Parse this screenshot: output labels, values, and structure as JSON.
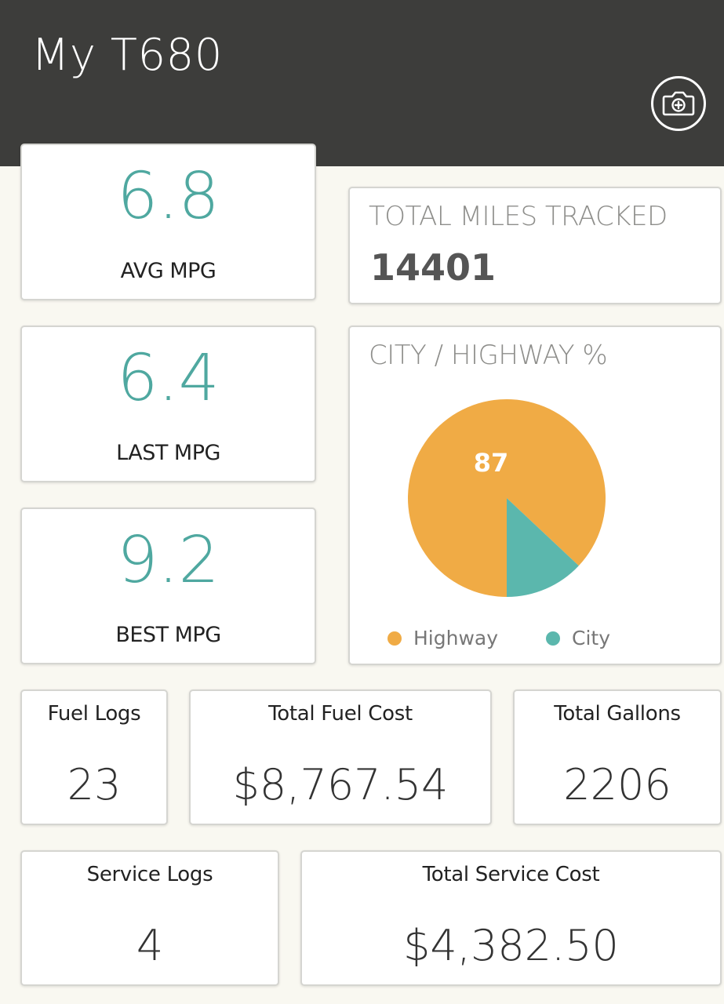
{
  "header": {
    "title": "My T680",
    "camera_icon": "camera-plus-icon"
  },
  "mpg_cards": [
    {
      "value": "6.8",
      "label": "AVG MPG"
    },
    {
      "value": "6.4",
      "label": "LAST MPG"
    },
    {
      "value": "9.2",
      "label": "BEST MPG"
    }
  ],
  "miles": {
    "title": "TOTAL MILES TRACKED",
    "value": "14401"
  },
  "city_highway": {
    "title": "CITY / HIGHWAY %",
    "legend": [
      {
        "name": "Highway",
        "color": "#f0ab45"
      },
      {
        "name": "City",
        "color": "#5bb7ad"
      }
    ]
  },
  "chart_data": {
    "type": "pie",
    "title": "CITY / HIGHWAY %",
    "slices": [
      {
        "name": "Highway",
        "value": 87,
        "color": "#f0ab45",
        "label": "87"
      },
      {
        "name": "City",
        "value": 13,
        "color": "#5bb7ad",
        "label": ""
      }
    ],
    "legend_position": "bottom"
  },
  "stats": {
    "fuel_logs": {
      "label": "Fuel Logs",
      "value": "23"
    },
    "total_fuel_cost": {
      "label": "Total Fuel Cost",
      "value": "$8,767.54"
    },
    "total_gallons": {
      "label": "Total Gallons",
      "value": "2206"
    },
    "service_logs": {
      "label": "Service Logs",
      "value": "4"
    },
    "total_service_cost": {
      "label": "Total Service Cost",
      "value": "$4,382.50"
    }
  }
}
